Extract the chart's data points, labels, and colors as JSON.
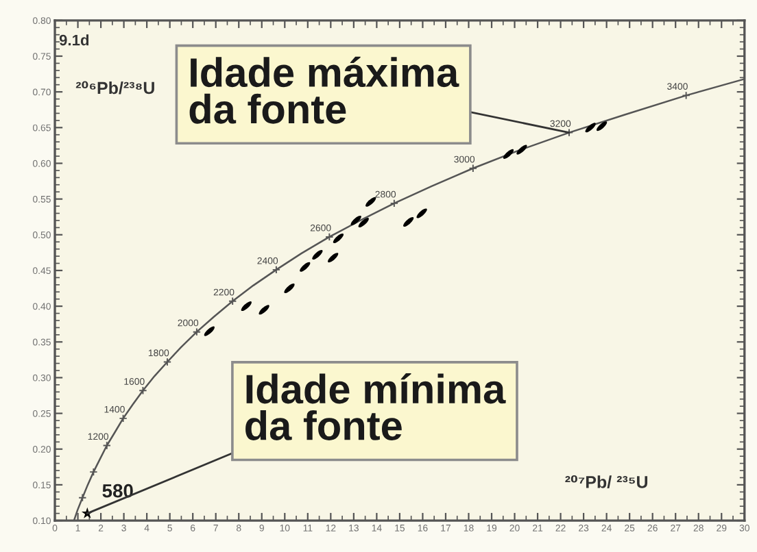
{
  "chart_data": {
    "type": "scatter",
    "xlabel": "²⁰⁷Pb/ ²³⁵U",
    "ylabel": "²⁰⁶Pb/²³⁸U",
    "xlim": [
      0,
      30
    ],
    "ylim": [
      0.1,
      0.8
    ],
    "xticks": [
      0,
      {
        "value": 0.5,
        "label": null
      },
      1,
      {
        "value": 1.5,
        "label": null
      },
      2,
      {
        "value": 2.5,
        "label": null
      },
      3,
      {
        "value": 3.5,
        "label": null
      },
      4,
      {
        "value": 4.5,
        "label": null
      },
      5,
      {
        "value": 5.5,
        "label": null
      },
      6,
      {
        "value": 6.5,
        "label": null
      },
      7,
      {
        "value": 7.5,
        "label": null
      },
      8,
      {
        "value": 8.5,
        "label": null
      },
      9,
      {
        "value": 9.5,
        "label": null
      },
      10,
      {
        "value": 10.5,
        "label": null
      },
      11,
      {
        "value": 11.5,
        "label": null
      },
      12,
      {
        "value": 12.5,
        "label": null
      },
      13,
      {
        "value": 13.5,
        "label": null
      },
      14,
      {
        "value": 14.5,
        "label": null
      },
      15,
      {
        "value": 15.5,
        "label": null
      },
      16,
      {
        "value": 16.5,
        "label": null
      },
      17,
      {
        "value": 17.5,
        "label": null
      },
      18,
      {
        "value": 18.5,
        "label": null
      },
      19,
      {
        "value": 19.5,
        "label": null
      },
      20,
      {
        "value": 20.5,
        "label": null
      },
      21,
      {
        "value": 21.5,
        "label": null
      },
      22,
      {
        "value": 22.5,
        "label": null
      },
      23,
      {
        "value": 23.5,
        "label": null
      },
      24,
      {
        "value": 24.5,
        "label": null
      },
      25,
      {
        "value": 25.5,
        "label": null
      },
      26,
      {
        "value": 26.5,
        "label": null
      },
      27,
      {
        "value": 27.5,
        "label": null
      },
      28,
      {
        "value": 28.5,
        "label": null
      },
      29,
      {
        "value": 29.5,
        "label": null
      },
      30
    ],
    "yticks": [
      {
        "value": 0.1,
        "label": "0.10"
      },
      {
        "value": 0.11,
        "label": null
      },
      {
        "value": 0.12,
        "label": null
      },
      {
        "value": 0.13,
        "label": null
      },
      {
        "value": 0.14,
        "label": null
      },
      0.15,
      {
        "value": 0.16,
        "label": null
      },
      {
        "value": 0.17,
        "label": null
      },
      {
        "value": 0.18,
        "label": null
      },
      {
        "value": 0.19,
        "label": null
      },
      {
        "value": 0.2,
        "label": "0.20"
      },
      {
        "value": 0.21,
        "label": null
      },
      {
        "value": 0.22,
        "label": null
      },
      {
        "value": 0.23,
        "label": null
      },
      {
        "value": 0.24,
        "label": null
      },
      0.25,
      {
        "value": 0.26,
        "label": null
      },
      {
        "value": 0.27,
        "label": null
      },
      {
        "value": 0.28,
        "label": null
      },
      {
        "value": 0.29,
        "label": null
      },
      {
        "value": 0.3,
        "label": "0.30"
      },
      {
        "value": 0.31,
        "label": null
      },
      {
        "value": 0.32,
        "label": null
      },
      {
        "value": 0.33,
        "label": null
      },
      {
        "value": 0.34,
        "label": null
      },
      0.35,
      {
        "value": 0.36,
        "label": null
      },
      {
        "value": 0.37,
        "label": null
      },
      {
        "value": 0.38,
        "label": null
      },
      {
        "value": 0.39,
        "label": null
      },
      {
        "value": 0.4,
        "label": "0.40"
      },
      {
        "value": 0.41,
        "label": null
      },
      {
        "value": 0.42,
        "label": null
      },
      {
        "value": 0.43,
        "label": null
      },
      {
        "value": 0.44,
        "label": null
      },
      0.45,
      {
        "value": 0.46,
        "label": null
      },
      {
        "value": 0.47,
        "label": null
      },
      {
        "value": 0.48,
        "label": null
      },
      {
        "value": 0.49,
        "label": null
      },
      {
        "value": 0.5,
        "label": "0.50"
      },
      {
        "value": 0.51,
        "label": null
      },
      {
        "value": 0.52,
        "label": null
      },
      {
        "value": 0.53,
        "label": null
      },
      {
        "value": 0.54,
        "label": null
      },
      0.55,
      {
        "value": 0.56,
        "label": null
      },
      {
        "value": 0.57,
        "label": null
      },
      {
        "value": 0.58,
        "label": null
      },
      {
        "value": 0.59,
        "label": null
      },
      {
        "value": 0.6,
        "label": "0.60"
      },
      {
        "value": 0.61,
        "label": null
      },
      {
        "value": 0.62,
        "label": null
      },
      {
        "value": 0.63,
        "label": null
      },
      {
        "value": 0.64,
        "label": null
      },
      0.65,
      {
        "value": 0.66,
        "label": null
      },
      {
        "value": 0.67,
        "label": null
      },
      {
        "value": 0.68,
        "label": null
      },
      {
        "value": 0.69,
        "label": null
      },
      {
        "value": 0.7,
        "label": "0.70"
      },
      {
        "value": 0.71,
        "label": null
      },
      {
        "value": 0.72,
        "label": null
      },
      {
        "value": 0.73,
        "label": null
      },
      {
        "value": 0.74,
        "label": null
      },
      0.75,
      {
        "value": 0.76,
        "label": null
      },
      {
        "value": 0.77,
        "label": null
      },
      {
        "value": 0.78,
        "label": null
      },
      {
        "value": 0.79,
        "label": null
      },
      {
        "value": 0.8,
        "label": "0.80"
      }
    ],
    "series": [
      {
        "type": "line",
        "color": "#555555",
        "marker": "none",
        "line_style": "solid",
        "x": [
          0.83,
          0.99,
          1.2,
          1.43,
          1.68,
          1.96,
          2.26,
          2.6,
          2.97,
          3.38,
          3.83,
          4.33,
          4.89,
          5.5,
          6.17,
          6.91,
          7.73,
          8.63,
          9.63,
          10.73,
          11.94,
          13.28,
          14.76,
          16.39,
          18.19,
          20.18,
          22.37,
          24.79,
          27.46,
          30.0
        ],
        "values": [
          0.1,
          0.115,
          0.132,
          0.15,
          0.168,
          0.186,
          0.205,
          0.223,
          0.243,
          0.262,
          0.282,
          0.302,
          0.322,
          0.343,
          0.364,
          0.385,
          0.407,
          0.429,
          0.451,
          0.474,
          0.497,
          0.52,
          0.544,
          0.568,
          0.593,
          0.618,
          0.643,
          0.668,
          0.695,
          0.718
        ]
      },
      {
        "color": "#555555",
        "marker": "cross",
        "x": [
          1.2,
          1.68,
          2.26,
          2.97,
          3.83,
          4.89,
          6.17,
          7.73,
          9.63,
          11.94,
          14.76,
          18.19,
          22.37,
          27.46
        ],
        "values": [
          0.132,
          0.168,
          0.205,
          0.243,
          0.282,
          0.322,
          0.364,
          0.407,
          0.451,
          0.497,
          0.544,
          0.593,
          0.643,
          0.695
        ]
      },
      {
        "color": "#000000",
        "marker": "circle",
        "x": [
          6.72,
          8.33,
          9.1,
          10.2,
          10.88,
          11.42,
          12.1,
          12.33,
          13.1,
          13.43,
          13.74,
          15.38,
          15.96,
          19.73,
          20.31,
          23.3,
          23.79
        ],
        "values": [
          0.365,
          0.4,
          0.395,
          0.425,
          0.455,
          0.472,
          0.468,
          0.495,
          0.52,
          0.517,
          0.546,
          0.518,
          0.53,
          0.613,
          0.619,
          0.65,
          0.652
        ]
      },
      {
        "color": "#000000",
        "marker": "star",
        "x": [
          1.41
        ],
        "values": [
          0.11
        ]
      }
    ],
    "annotations": [
      "9.1d",
      {
        "text": "Idade máxima\nda fonte",
        "x": 22.37,
        "y": 0.643
      },
      {
        "text": "Idade mínima\nda fonte",
        "x": 1.41,
        "y": 0.11
      },
      {
        "text": "580",
        "x": 1.41,
        "y": 0.11
      },
      {
        "text": "1200",
        "x": 2.26,
        "y": 0.205
      },
      {
        "text": "1400",
        "x": 2.97,
        "y": 0.243
      },
      {
        "text": "1600",
        "x": 3.83,
        "y": 0.282
      },
      {
        "text": "1800",
        "x": 4.89,
        "y": 0.322
      },
      {
        "text": "2000",
        "x": 6.17,
        "y": 0.364
      },
      {
        "text": "2200",
        "x": 7.73,
        "y": 0.407
      },
      {
        "text": "2400",
        "x": 9.63,
        "y": 0.451
      },
      {
        "text": "2600",
        "x": 11.94,
        "y": 0.497
      },
      {
        "text": "2800",
        "x": 14.76,
        "y": 0.544
      },
      {
        "text": "3000",
        "x": 18.19,
        "y": 0.593
      },
      {
        "text": "3200",
        "x": 22.37,
        "y": 0.643
      },
      {
        "text": "3400",
        "x": 27.46,
        "y": 0.695
      }
    ],
    "grid": false,
    "legend": false
  }
}
